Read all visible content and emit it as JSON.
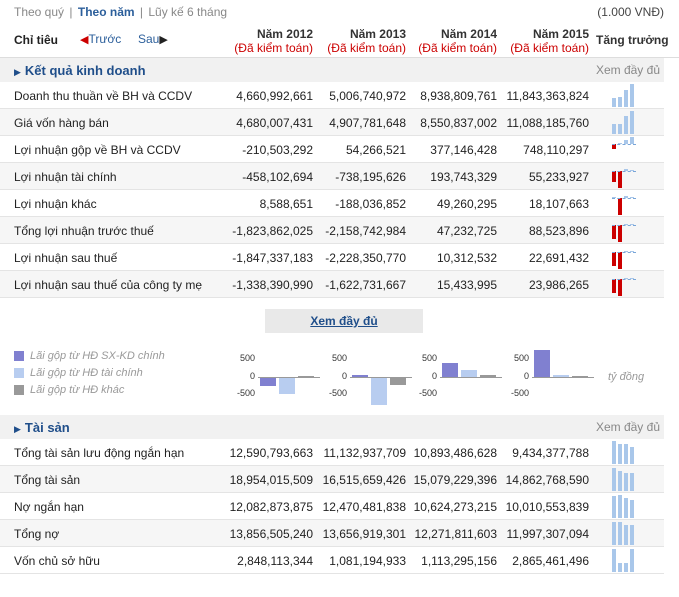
{
  "topbar": {
    "tab1": "Theo quý",
    "sep1": "|",
    "tab2": "Theo năm",
    "sep2": "|",
    "tab3": "Lũy kế 6 tháng",
    "unit": "(1.000 VNĐ)"
  },
  "header": {
    "chitieu": "Chỉ tiêu",
    "prev_arrow": "◀",
    "prev": "Trước",
    "next": "Sau",
    "next_arrow": "▶",
    "columns": [
      {
        "year": "Năm 2012",
        "audit": "(Đã kiểm toán)"
      },
      {
        "year": "Năm 2013",
        "audit": "(Đã kiểm toán)"
      },
      {
        "year": "Năm 2014",
        "audit": "(Đã kiểm toán)"
      },
      {
        "year": "Năm 2015",
        "audit": "(Đã kiểm toán)"
      }
    ],
    "growth": "Tăng trưởng"
  },
  "section1": {
    "title": "Kết quả kinh doanh",
    "more": "Xem đầy đủ",
    "tri": "▶"
  },
  "rows1": [
    {
      "label": "Doanh thu thuần về BH và CCDV",
      "values": [
        "4,660,992,661",
        "5,006,740,972",
        "8,938,809,761",
        "11,843,363,824"
      ]
    },
    {
      "label": "Giá vốn hàng bán",
      "values": [
        "4,680,007,431",
        "4,907,781,648",
        "8,550,837,002",
        "11,088,185,760"
      ]
    },
    {
      "label": "Lợi nhuận gộp về BH và CCDV",
      "values": [
        "-210,503,292",
        "54,266,521",
        "377,146,428",
        "748,110,297"
      ]
    },
    {
      "label": "Lợi nhuận tài chính",
      "values": [
        "-458,102,694",
        "-738,195,626",
        "193,743,329",
        "55,233,927"
      ]
    },
    {
      "label": "Lợi nhuận khác",
      "values": [
        "8,588,651",
        "-188,036,852",
        "49,260,295",
        "18,107,663"
      ]
    },
    {
      "label": "Tổng lợi nhuận trước thuế",
      "values": [
        "-1,823,862,025",
        "-2,158,742,984",
        "47,232,725",
        "88,523,896"
      ]
    },
    {
      "label": "Lợi nhuận sau thuế",
      "values": [
        "-1,847,337,183",
        "-2,228,350,770",
        "10,312,532",
        "22,691,432"
      ]
    },
    {
      "label": "Lợi nhuận sau thuế của công ty mẹ",
      "values": [
        "-1,338,390,990",
        "-1,622,731,667",
        "15,433,995",
        "23,986,265"
      ]
    }
  ],
  "more_button": "Xem đầy đủ",
  "legend": [
    {
      "label": "Lãi gộp từ HĐ SX-KD chính",
      "color": "#8080d0"
    },
    {
      "label": "Lãi gộp từ HĐ tài chính",
      "color": "#b8cdf0"
    },
    {
      "label": "Lãi gộp từ HĐ khác",
      "color": "#999999"
    }
  ],
  "mini_ticks": [
    "500",
    "0",
    "-500"
  ],
  "mini_charts": [
    {
      "a": -210,
      "b": -458,
      "c": 9
    },
    {
      "a": 54,
      "b": -738,
      "c": -188
    },
    {
      "a": 377,
      "b": 194,
      "c": 49
    },
    {
      "a": 748,
      "b": 55,
      "c": 18
    }
  ],
  "unit_note": "tỷ đồng",
  "section2": {
    "title": "Tài sản",
    "more": "Xem đầy đủ"
  },
  "rows2": [
    {
      "label": "Tổng tài sản lưu động ngắn hạn",
      "values": [
        "12,590,793,663",
        "11,132,937,709",
        "10,893,486,628",
        "9,434,377,788"
      ]
    },
    {
      "label": "Tổng tài sản",
      "values": [
        "18,954,015,509",
        "16,515,659,426",
        "15,079,229,396",
        "14,862,768,590"
      ]
    },
    {
      "label": "Nợ ngắn hạn",
      "values": [
        "12,082,873,875",
        "12,470,481,838",
        "10,624,273,215",
        "10,010,553,839"
      ]
    },
    {
      "label": "Tổng nợ",
      "values": [
        "13,856,505,240",
        "13,656,919,301",
        "12,271,811,603",
        "11,997,307,094"
      ]
    },
    {
      "label": "Vốn chủ sở hữu",
      "values": [
        "2,848,113,344",
        "1,081,194,933",
        "1,113,295,156",
        "2,865,461,496"
      ]
    }
  ]
}
